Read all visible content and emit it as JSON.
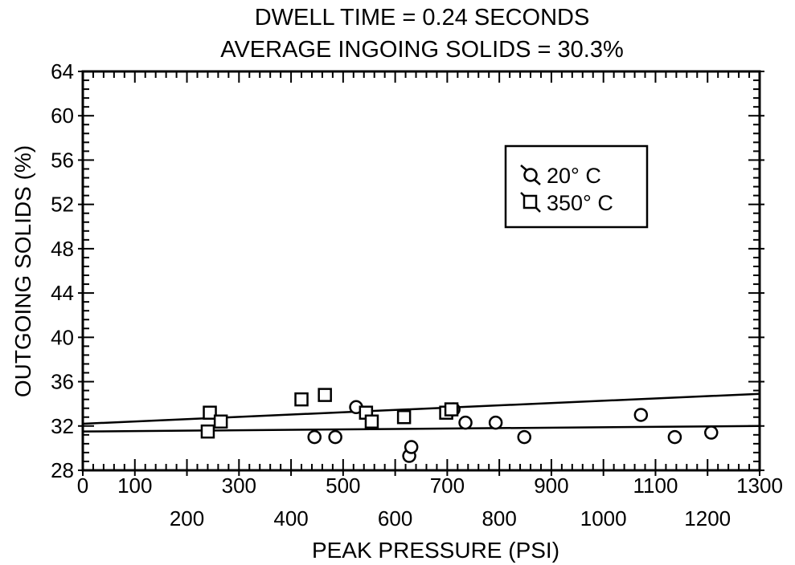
{
  "chart_data": {
    "type": "scatter",
    "title": "DWELL TIME = 0.24 SECONDS",
    "subtitle": "AVERAGE INGOING SOLIDS = 30.3%",
    "xlabel": "PEAK PRESSURE (PSI)",
    "ylabel": "OUTGOING SOLIDS (%)",
    "xlim": [
      0,
      1300
    ],
    "ylim": [
      28,
      64
    ],
    "x_ticks_upper": [
      "0",
      "100",
      "300",
      "500",
      "700",
      "900",
      "1100",
      "1300"
    ],
    "x_ticks_lower": [
      "200",
      "400",
      "600",
      "800",
      "1000",
      "1200"
    ],
    "y_ticks": [
      "28",
      "32",
      "36",
      "40",
      "44",
      "48",
      "52",
      "56",
      "60",
      "64"
    ],
    "grid": false,
    "legend_position": "top-right",
    "series": [
      {
        "name": "20° C",
        "marker": "circle",
        "points": [
          {
            "x": 445,
            "y": 31.0
          },
          {
            "x": 485,
            "y": 31.0
          },
          {
            "x": 525,
            "y": 33.7
          },
          {
            "x": 627,
            "y": 29.3
          },
          {
            "x": 631,
            "y": 30.1
          },
          {
            "x": 712,
            "y": 33.5
          },
          {
            "x": 735,
            "y": 32.3
          },
          {
            "x": 793,
            "y": 32.3
          },
          {
            "x": 848,
            "y": 31.0
          },
          {
            "x": 1072,
            "y": 33.0
          },
          {
            "x": 1137,
            "y": 31.0
          },
          {
            "x": 1207,
            "y": 31.4
          }
        ],
        "fit_line": [
          {
            "x": 0,
            "y": 31.5
          },
          {
            "x": 1300,
            "y": 32.0
          }
        ]
      },
      {
        "name": "350° C",
        "marker": "square",
        "points": [
          {
            "x": 240,
            "y": 31.5
          },
          {
            "x": 244,
            "y": 33.2
          },
          {
            "x": 265,
            "y": 32.4
          },
          {
            "x": 420,
            "y": 34.4
          },
          {
            "x": 465,
            "y": 34.8
          },
          {
            "x": 544,
            "y": 33.2
          },
          {
            "x": 555,
            "y": 32.4
          },
          {
            "x": 617,
            "y": 32.8
          },
          {
            "x": 698,
            "y": 33.2
          },
          {
            "x": 708,
            "y": 33.5
          }
        ],
        "fit_line": [
          {
            "x": 0,
            "y": 32.2
          },
          {
            "x": 1300,
            "y": 34.9
          }
        ]
      }
    ]
  }
}
